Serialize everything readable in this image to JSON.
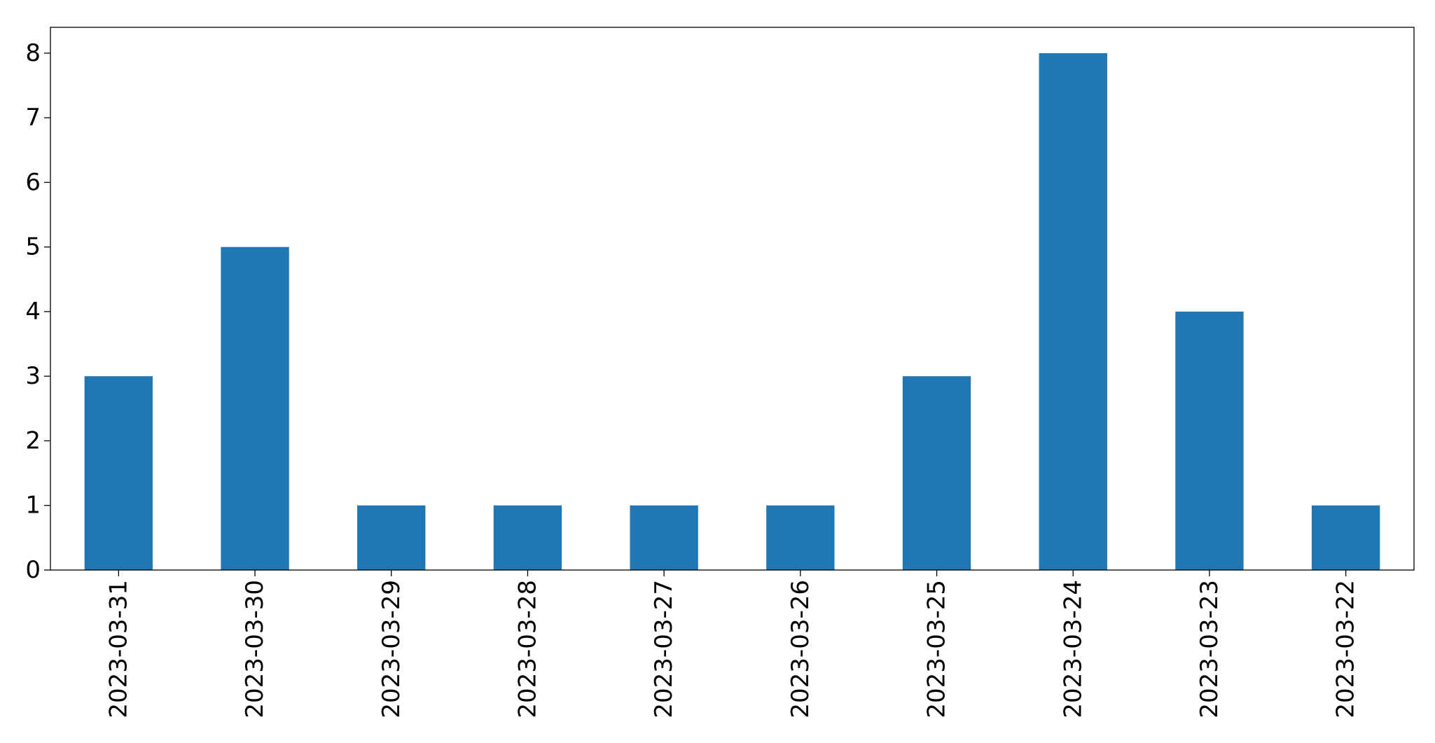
{
  "chart_data": {
    "type": "bar",
    "categories": [
      "2023-03-31",
      "2023-03-30",
      "2023-03-29",
      "2023-03-28",
      "2023-03-27",
      "2023-03-26",
      "2023-03-25",
      "2023-03-24",
      "2023-03-23",
      "2023-03-22"
    ],
    "values": [
      3,
      5,
      1,
      1,
      1,
      1,
      3,
      8,
      4,
      1
    ],
    "color": "#1f77b4",
    "ylim": [
      0,
      8.4
    ],
    "yticks": [
      0,
      1,
      2,
      3,
      4,
      5,
      6,
      7,
      8
    ],
    "grid": false
  }
}
